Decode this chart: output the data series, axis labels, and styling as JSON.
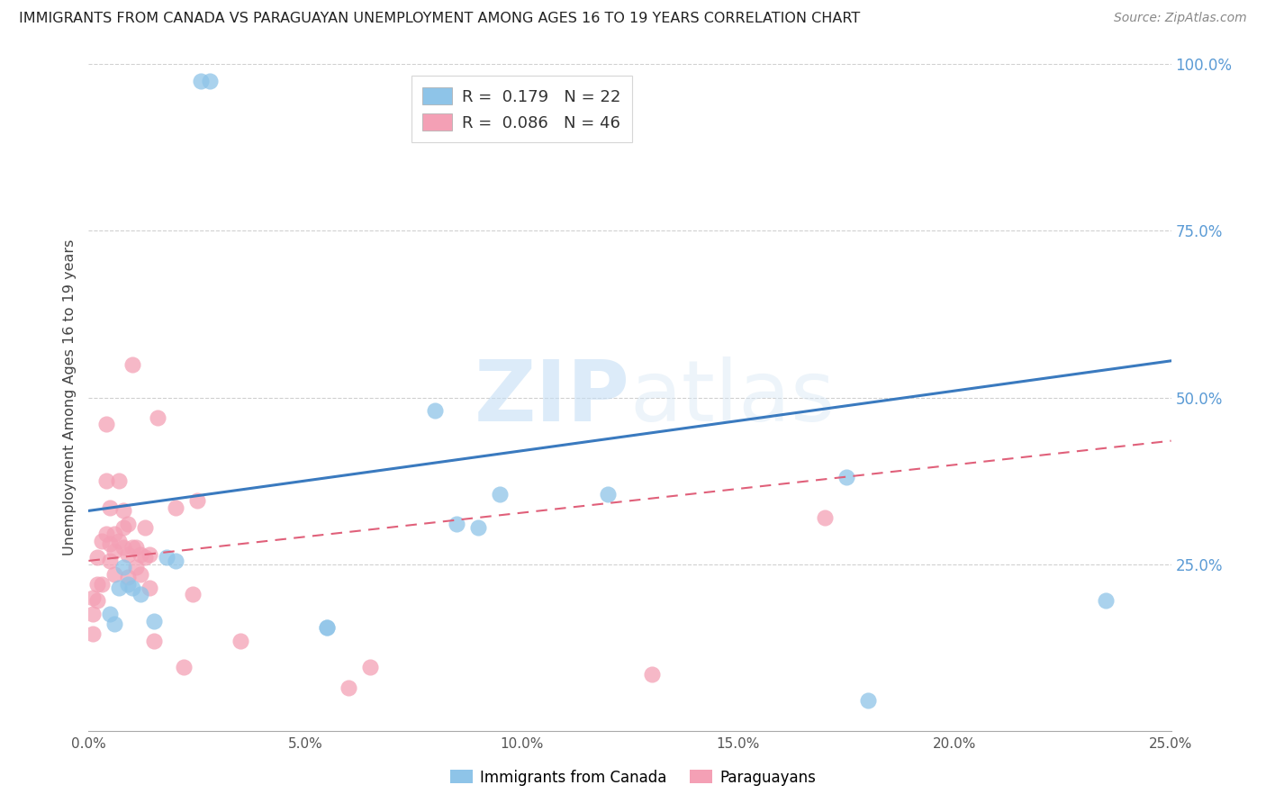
{
  "title": "IMMIGRANTS FROM CANADA VS PARAGUAYAN UNEMPLOYMENT AMONG AGES 16 TO 19 YEARS CORRELATION CHART",
  "source": "Source: ZipAtlas.com",
  "ylabel": "Unemployment Among Ages 16 to 19 years",
  "xlim": [
    0.0,
    0.25
  ],
  "ylim": [
    0.0,
    1.0
  ],
  "xticks": [
    0.0,
    0.05,
    0.1,
    0.15,
    0.2,
    0.25
  ],
  "yticks": [
    0.25,
    0.5,
    0.75,
    1.0
  ],
  "ytick_labels_right": [
    "25.0%",
    "50.0%",
    "75.0%",
    "100.0%"
  ],
  "xtick_labels": [
    "0.0%",
    "5.0%",
    "10.0%",
    "15.0%",
    "20.0%",
    "25.0%"
  ],
  "blue_color": "#8ec4e8",
  "pink_color": "#f4a0b5",
  "blue_line_color": "#3a7abf",
  "pink_line_color": "#e0607a",
  "watermark_zip": "ZIP",
  "watermark_atlas": "atlas",
  "blue_scatter_x": [
    0.026,
    0.028,
    0.005,
    0.006,
    0.007,
    0.008,
    0.009,
    0.01,
    0.012,
    0.015,
    0.018,
    0.02,
    0.055,
    0.055,
    0.08,
    0.085,
    0.09,
    0.095,
    0.12,
    0.175,
    0.18,
    0.235
  ],
  "blue_scatter_y": [
    0.975,
    0.975,
    0.175,
    0.16,
    0.215,
    0.245,
    0.22,
    0.215,
    0.205,
    0.165,
    0.26,
    0.255,
    0.155,
    0.155,
    0.48,
    0.31,
    0.305,
    0.355,
    0.355,
    0.38,
    0.045,
    0.195
  ],
  "pink_scatter_x": [
    0.001,
    0.001,
    0.001,
    0.002,
    0.002,
    0.002,
    0.003,
    0.003,
    0.004,
    0.004,
    0.004,
    0.005,
    0.005,
    0.005,
    0.006,
    0.006,
    0.006,
    0.007,
    0.007,
    0.008,
    0.008,
    0.008,
    0.009,
    0.009,
    0.009,
    0.01,
    0.01,
    0.011,
    0.011,
    0.012,
    0.012,
    0.013,
    0.013,
    0.014,
    0.014,
    0.015,
    0.016,
    0.02,
    0.022,
    0.024,
    0.025,
    0.035,
    0.06,
    0.065,
    0.13,
    0.17
  ],
  "pink_scatter_y": [
    0.2,
    0.175,
    0.145,
    0.26,
    0.22,
    0.195,
    0.285,
    0.22,
    0.46,
    0.375,
    0.295,
    0.335,
    0.28,
    0.255,
    0.295,
    0.27,
    0.235,
    0.375,
    0.285,
    0.33,
    0.305,
    0.275,
    0.31,
    0.265,
    0.23,
    0.55,
    0.275,
    0.275,
    0.245,
    0.265,
    0.235,
    0.305,
    0.26,
    0.265,
    0.215,
    0.135,
    0.47,
    0.335,
    0.095,
    0.205,
    0.345,
    0.135,
    0.065,
    0.095,
    0.085,
    0.32
  ],
  "blue_trend_x": [
    0.0,
    0.25
  ],
  "blue_trend_y": [
    0.33,
    0.555
  ],
  "pink_trend_x": [
    0.0,
    0.25
  ],
  "pink_trend_y": [
    0.255,
    0.435
  ]
}
